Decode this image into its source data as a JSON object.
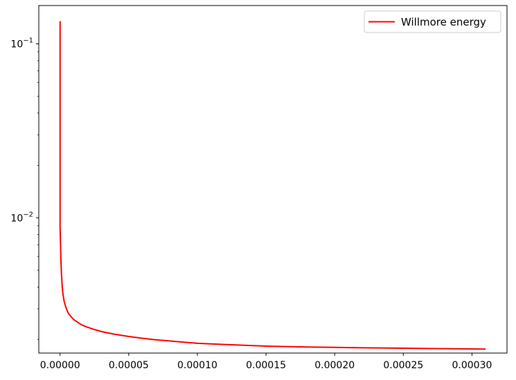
{
  "chart_data": {
    "type": "line",
    "title": "",
    "xlabel": "",
    "ylabel": "",
    "yscale": "log",
    "xlim": [
      -1.55e-05,
      0.0003255
    ],
    "ylim": [
      0.00167,
      0.166
    ],
    "grid": false,
    "legend_position": "top-right",
    "x_ticks": [
      {
        "value": 0.0,
        "label": "0.00000"
      },
      {
        "value": 5e-05,
        "label": "0.00005"
      },
      {
        "value": 0.0001,
        "label": "0.00010"
      },
      {
        "value": 0.00015,
        "label": "0.00015"
      },
      {
        "value": 0.0002,
        "label": "0.00020"
      },
      {
        "value": 0.00025,
        "label": "0.00025"
      },
      {
        "value": 0.0003,
        "label": "0.00030"
      }
    ],
    "y_ticks": [
      {
        "value": 0.1,
        "base": "10",
        "exp": "−1"
      },
      {
        "value": 0.01,
        "base": "10",
        "exp": "−2"
      }
    ],
    "series": [
      {
        "name": "Willmore energy",
        "color": "#ff0000",
        "x": [
          0,
          0,
          0,
          1e-07,
          2e-07,
          4e-07,
          6e-07,
          1e-06,
          1.5e-06,
          2e-06,
          3e-06,
          4e-06,
          5e-06,
          6e-06,
          8e-06,
          1e-05,
          1.3e-05,
          1.6e-05,
          2e-05,
          2.5e-05,
          3e-05,
          4e-05,
          5e-05,
          6e-05,
          7e-05,
          8e-05,
          0.0001,
          0.00012,
          0.00015,
          0.00018,
          0.0002,
          0.00022,
          0.00025,
          0.00028,
          0.00031
        ],
        "y": [
          0.135,
          0.05,
          0.0087,
          0.0083,
          0.0078,
          0.0067,
          0.0058,
          0.0048,
          0.0041,
          0.0037,
          0.0033,
          0.0031,
          0.00295,
          0.00283,
          0.0027,
          0.0026,
          0.0025,
          0.00242,
          0.00235,
          0.00228,
          0.00222,
          0.00214,
          0.00208,
          0.00203,
          0.00199,
          0.00196,
          0.0019,
          0.00187,
          0.00183,
          0.00181,
          0.0018,
          0.00179,
          0.00178,
          0.00177,
          0.00176
        ]
      }
    ]
  }
}
